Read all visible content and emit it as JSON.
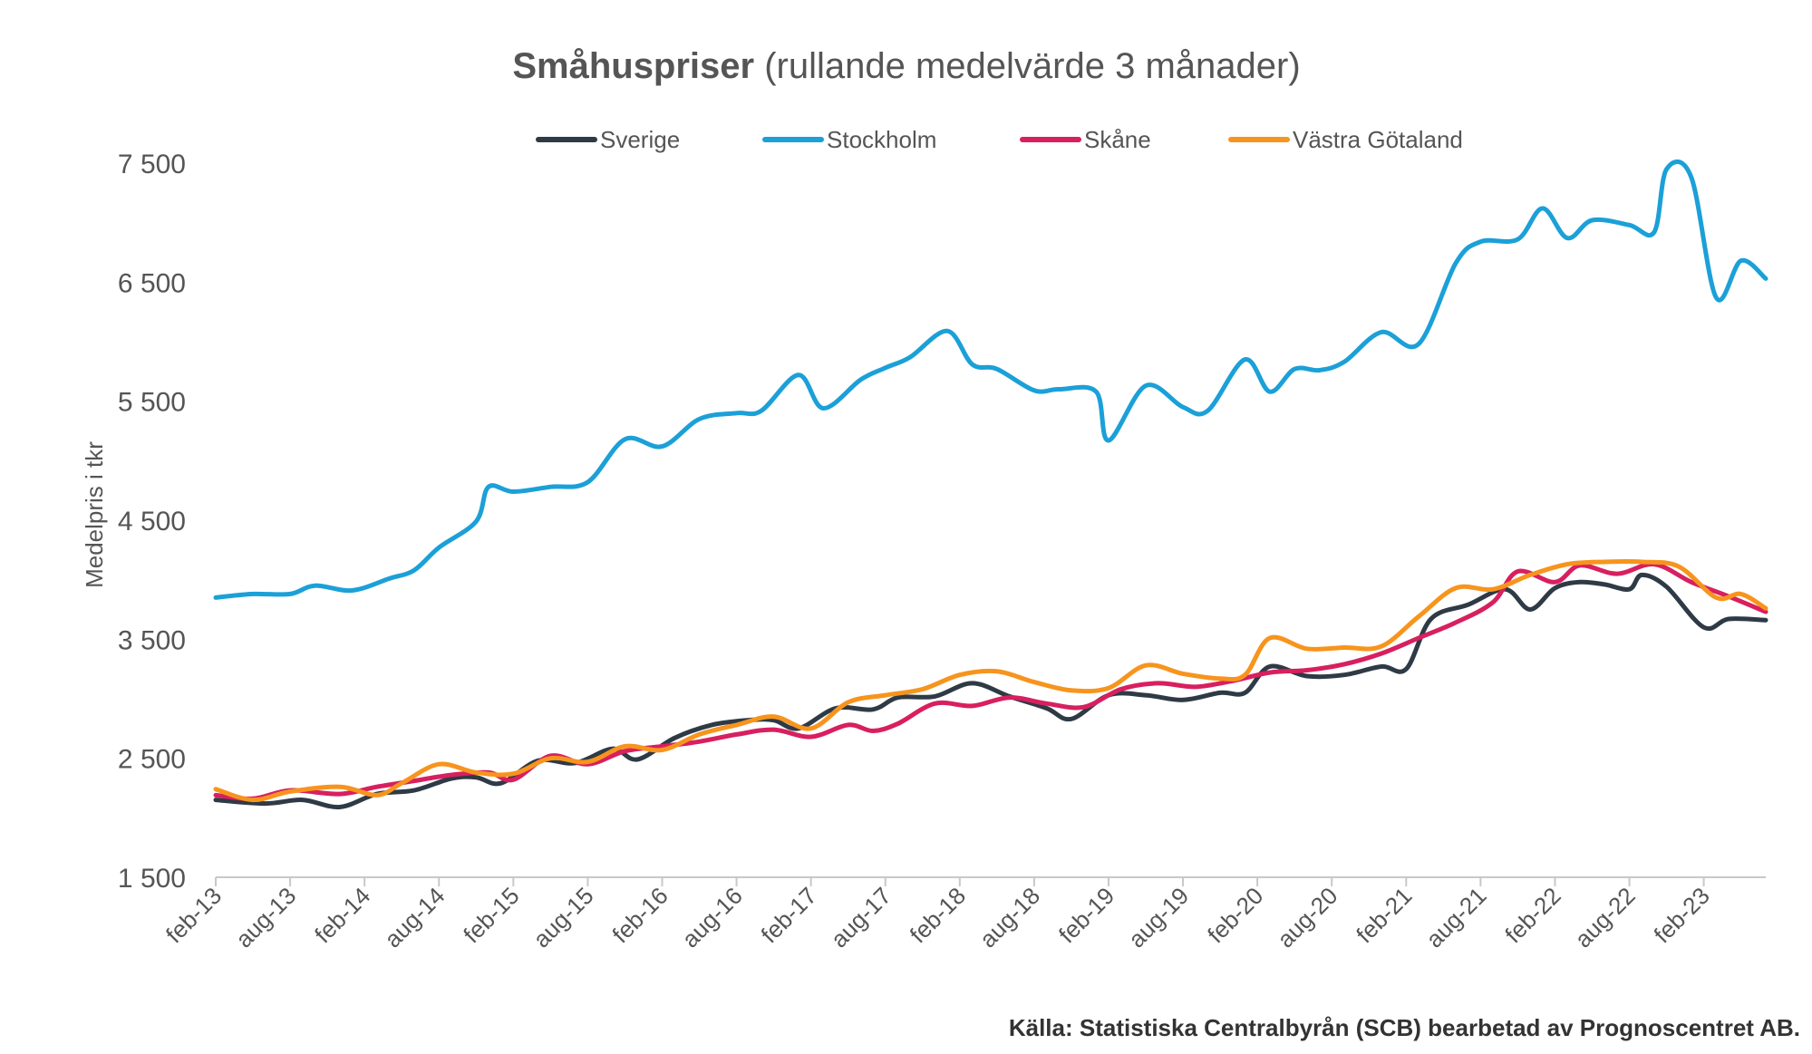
{
  "chart_data": {
    "type": "line",
    "title_bold": "Småhuspriser",
    "title_rest": " (rullande medelvärde 3 månader)",
    "ylabel": "Medelpris i tkr",
    "source": "Källa: Statistiska Centralbyrån (SCB) bearbetad av Prognoscentret AB.",
    "ylim": [
      1500,
      7500
    ],
    "yticks": [
      1500,
      2500,
      3500,
      4500,
      5500,
      6500,
      7500
    ],
    "ytick_labels": [
      "1 500",
      "2 500",
      "3 500",
      "4 500",
      "5 500",
      "6 500",
      "7 500"
    ],
    "x_start": "2013-02",
    "x_end": "2023-07",
    "xtick_labels": [
      "feb-13",
      "aug-13",
      "feb-14",
      "aug-14",
      "feb-15",
      "aug-15",
      "feb-16",
      "aug-16",
      "feb-17",
      "aug-17",
      "feb-18",
      "aug-18",
      "feb-19",
      "aug-19",
      "feb-20",
      "aug-20",
      "feb-21",
      "aug-21",
      "feb-22",
      "aug-22",
      "feb-23"
    ],
    "legend_position": "top",
    "grid": false,
    "series": [
      {
        "name": "Sverige",
        "color": "#2e3a45",
        "points": [
          [
            "2013-02",
            2150
          ],
          [
            "2013-06",
            2120
          ],
          [
            "2013-09",
            2150
          ],
          [
            "2013-12",
            2090
          ],
          [
            "2014-03",
            2200
          ],
          [
            "2014-06",
            2230
          ],
          [
            "2014-09",
            2330
          ],
          [
            "2014-11",
            2340
          ],
          [
            "2015-01",
            2290
          ],
          [
            "2015-04",
            2480
          ],
          [
            "2015-07",
            2460
          ],
          [
            "2015-10",
            2580
          ],
          [
            "2015-12",
            2490
          ],
          [
            "2016-03",
            2670
          ],
          [
            "2016-06",
            2780
          ],
          [
            "2016-09",
            2820
          ],
          [
            "2016-11",
            2820
          ],
          [
            "2017-01",
            2750
          ],
          [
            "2017-04",
            2920
          ],
          [
            "2017-07",
            2910
          ],
          [
            "2017-09",
            3010
          ],
          [
            "2017-12",
            3020
          ],
          [
            "2018-03",
            3130
          ],
          [
            "2018-06",
            3020
          ],
          [
            "2018-09",
            2920
          ],
          [
            "2018-11",
            2830
          ],
          [
            "2019-02",
            3030
          ],
          [
            "2019-05",
            3030
          ],
          [
            "2019-08",
            2990
          ],
          [
            "2019-11",
            3050
          ],
          [
            "2020-01",
            3050
          ],
          [
            "2020-03",
            3270
          ],
          [
            "2020-06",
            3190
          ],
          [
            "2020-09",
            3200
          ],
          [
            "2020-12",
            3270
          ],
          [
            "2021-02",
            3250
          ],
          [
            "2021-04",
            3670
          ],
          [
            "2021-07",
            3790
          ],
          [
            "2021-10",
            3920
          ],
          [
            "2021-12",
            3750
          ],
          [
            "2022-02",
            3930
          ],
          [
            "2022-04",
            3980
          ],
          [
            "2022-06",
            3960
          ],
          [
            "2022-08",
            3920
          ],
          [
            "2022-09",
            4040
          ],
          [
            "2022-11",
            3940
          ],
          [
            "2023-02",
            3600
          ],
          [
            "2023-04",
            3670
          ],
          [
            "2023-07",
            3660
          ]
        ]
      },
      {
        "name": "Stockholm",
        "color": "#1ba0d8",
        "points": [
          [
            "2013-02",
            3850
          ],
          [
            "2013-05",
            3880
          ],
          [
            "2013-08",
            3880
          ],
          [
            "2013-10",
            3950
          ],
          [
            "2014-01",
            3910
          ],
          [
            "2014-04",
            4010
          ],
          [
            "2014-06",
            4080
          ],
          [
            "2014-08",
            4270
          ],
          [
            "2014-11",
            4490
          ],
          [
            "2014-12",
            4780
          ],
          [
            "2015-02",
            4740
          ],
          [
            "2015-05",
            4780
          ],
          [
            "2015-08",
            4820
          ],
          [
            "2015-11",
            5180
          ],
          [
            "2016-02",
            5120
          ],
          [
            "2016-05",
            5350
          ],
          [
            "2016-08",
            5400
          ],
          [
            "2016-10",
            5420
          ],
          [
            "2017-01",
            5720
          ],
          [
            "2017-03",
            5440
          ],
          [
            "2017-06",
            5680
          ],
          [
            "2017-08",
            5780
          ],
          [
            "2017-10",
            5870
          ],
          [
            "2018-01",
            6090
          ],
          [
            "2018-03",
            5810
          ],
          [
            "2018-05",
            5770
          ],
          [
            "2018-08",
            5590
          ],
          [
            "2018-10",
            5600
          ],
          [
            "2019-01",
            5580
          ],
          [
            "2019-02",
            5170
          ],
          [
            "2019-05",
            5630
          ],
          [
            "2019-08",
            5450
          ],
          [
            "2019-10",
            5420
          ],
          [
            "2020-01",
            5850
          ],
          [
            "2020-03",
            5580
          ],
          [
            "2020-05",
            5770
          ],
          [
            "2020-07",
            5760
          ],
          [
            "2020-09",
            5830
          ],
          [
            "2020-12",
            6080
          ],
          [
            "2021-03",
            5980
          ],
          [
            "2021-06",
            6660
          ],
          [
            "2021-08",
            6840
          ],
          [
            "2021-11",
            6860
          ],
          [
            "2022-01",
            7120
          ],
          [
            "2022-03",
            6870
          ],
          [
            "2022-05",
            7020
          ],
          [
            "2022-08",
            6980
          ],
          [
            "2022-10",
            6920
          ],
          [
            "2022-11",
            7450
          ],
          [
            "2023-01",
            7380
          ],
          [
            "2023-03",
            6370
          ],
          [
            "2023-05",
            6680
          ],
          [
            "2023-07",
            6530
          ]
        ]
      },
      {
        "name": "Skåne",
        "color": "#d81f5f",
        "points": [
          [
            "2013-02",
            2190
          ],
          [
            "2013-05",
            2160
          ],
          [
            "2013-08",
            2230
          ],
          [
            "2013-12",
            2200
          ],
          [
            "2014-03",
            2260
          ],
          [
            "2014-06",
            2310
          ],
          [
            "2014-09",
            2360
          ],
          [
            "2014-12",
            2380
          ],
          [
            "2015-02",
            2320
          ],
          [
            "2015-05",
            2520
          ],
          [
            "2015-08",
            2450
          ],
          [
            "2015-11",
            2560
          ],
          [
            "2016-02",
            2600
          ],
          [
            "2016-05",
            2640
          ],
          [
            "2016-08",
            2700
          ],
          [
            "2016-11",
            2740
          ],
          [
            "2017-02",
            2680
          ],
          [
            "2017-05",
            2780
          ],
          [
            "2017-07",
            2730
          ],
          [
            "2017-09",
            2790
          ],
          [
            "2017-12",
            2960
          ],
          [
            "2018-03",
            2940
          ],
          [
            "2018-06",
            3010
          ],
          [
            "2018-09",
            2960
          ],
          [
            "2018-12",
            2930
          ],
          [
            "2019-03",
            3080
          ],
          [
            "2019-06",
            3130
          ],
          [
            "2019-09",
            3100
          ],
          [
            "2019-12",
            3150
          ],
          [
            "2020-03",
            3220
          ],
          [
            "2020-06",
            3240
          ],
          [
            "2020-09",
            3290
          ],
          [
            "2020-12",
            3380
          ],
          [
            "2021-03",
            3510
          ],
          [
            "2021-06",
            3640
          ],
          [
            "2021-09",
            3810
          ],
          [
            "2021-11",
            4070
          ],
          [
            "2022-02",
            3980
          ],
          [
            "2022-04",
            4120
          ],
          [
            "2022-07",
            4050
          ],
          [
            "2022-10",
            4130
          ],
          [
            "2023-01",
            3980
          ],
          [
            "2023-04",
            3860
          ],
          [
            "2023-07",
            3730
          ]
        ]
      },
      {
        "name": "Västra Götaland",
        "color": "#f7941d",
        "points": [
          [
            "2013-02",
            2240
          ],
          [
            "2013-05",
            2150
          ],
          [
            "2013-08",
            2220
          ],
          [
            "2013-12",
            2260
          ],
          [
            "2014-03",
            2190
          ],
          [
            "2014-05",
            2290
          ],
          [
            "2014-08",
            2450
          ],
          [
            "2014-11",
            2380
          ],
          [
            "2015-02",
            2370
          ],
          [
            "2015-05",
            2500
          ],
          [
            "2015-08",
            2470
          ],
          [
            "2015-11",
            2600
          ],
          [
            "2016-02",
            2570
          ],
          [
            "2016-05",
            2700
          ],
          [
            "2016-08",
            2780
          ],
          [
            "2016-11",
            2850
          ],
          [
            "2017-02",
            2750
          ],
          [
            "2017-05",
            2970
          ],
          [
            "2017-08",
            3030
          ],
          [
            "2017-11",
            3080
          ],
          [
            "2018-02",
            3200
          ],
          [
            "2018-05",
            3230
          ],
          [
            "2018-08",
            3140
          ],
          [
            "2018-11",
            3070
          ],
          [
            "2019-02",
            3090
          ],
          [
            "2019-05",
            3280
          ],
          [
            "2019-08",
            3210
          ],
          [
            "2019-11",
            3170
          ],
          [
            "2020-01",
            3200
          ],
          [
            "2020-03",
            3510
          ],
          [
            "2020-06",
            3420
          ],
          [
            "2020-09",
            3430
          ],
          [
            "2020-12",
            3440
          ],
          [
            "2021-03",
            3690
          ],
          [
            "2021-06",
            3930
          ],
          [
            "2021-09",
            3920
          ],
          [
            "2021-12",
            4040
          ],
          [
            "2022-03",
            4130
          ],
          [
            "2022-06",
            4150
          ],
          [
            "2022-09",
            4150
          ],
          [
            "2022-12",
            4110
          ],
          [
            "2023-03",
            3850
          ],
          [
            "2023-05",
            3880
          ],
          [
            "2023-07",
            3760
          ]
        ]
      }
    ]
  }
}
